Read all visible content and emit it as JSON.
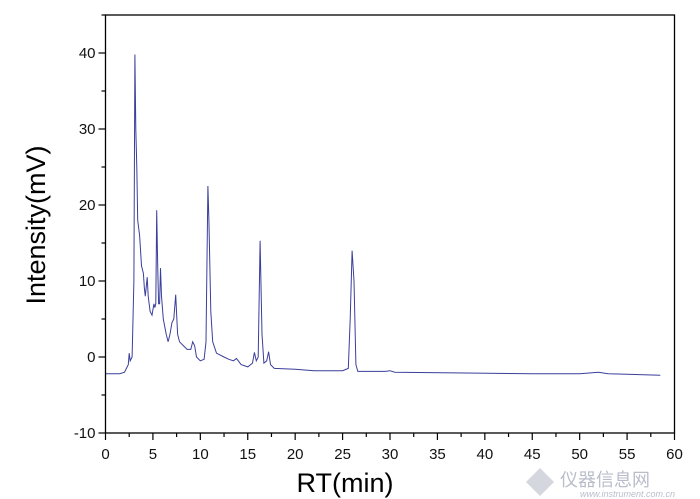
{
  "chart_data": {
    "type": "line",
    "title": "",
    "xlabel": "RT(min)",
    "ylabel": "Intensity(mV)",
    "xlim": [
      0,
      60
    ],
    "ylim": [
      -10,
      45
    ],
    "xticks": [
      0,
      5,
      10,
      15,
      20,
      25,
      30,
      35,
      40,
      45,
      50,
      55,
      60
    ],
    "yticks": [
      -10,
      0,
      10,
      20,
      30,
      40
    ],
    "grid": false,
    "legend": "none",
    "line_color": "#3a3f9a",
    "series": [
      {
        "x": [
          0,
          1.5,
          2.0,
          2.4,
          2.5,
          2.6,
          2.8,
          3.0,
          3.1,
          3.2,
          3.3,
          3.4,
          3.6,
          3.8,
          4.0,
          4.1,
          4.2,
          4.4,
          4.5,
          4.7,
          4.9,
          5.1,
          5.2,
          5.3,
          5.4,
          5.5,
          5.6,
          5.7,
          5.8,
          5.9,
          6.1,
          6.4,
          6.6,
          6.8,
          7.0,
          7.2,
          7.4,
          7.6,
          7.8,
          8.2,
          8.6,
          9.0,
          9.2,
          9.4,
          9.6,
          10.0,
          10.4,
          10.6,
          10.8,
          10.9,
          11.1,
          11.3,
          11.7,
          12.5,
          13.0,
          13.5,
          13.8,
          14.0,
          14.3,
          15.0,
          15.5,
          15.7,
          15.9,
          16.1,
          16.3,
          16.5,
          16.7,
          17.0,
          17.2,
          17.4,
          17.8,
          20,
          22,
          25,
          25.6,
          25.8,
          26.0,
          26.2,
          26.4,
          26.6,
          29.5,
          30,
          30.5,
          38,
          45,
          50,
          52,
          53,
          58.5
        ],
        "y": [
          -2.2,
          -2.2,
          -2.0,
          -1.0,
          0.5,
          -0.5,
          0,
          10,
          39.8,
          30,
          25,
          18,
          16,
          12,
          11,
          9,
          8,
          10.5,
          8,
          6,
          5.5,
          7,
          6.5,
          7,
          19.3,
          12,
          7,
          7,
          11.7,
          8,
          5,
          3,
          2,
          3,
          4.5,
          5,
          8.2,
          3,
          2,
          1.5,
          1,
          1,
          2,
          1.5,
          0,
          -0.5,
          -0.3,
          2,
          22.5,
          18,
          6,
          2,
          0.5,
          0,
          -0.3,
          -0.5,
          -0.2,
          -0.5,
          -1,
          -1.3,
          -0.8,
          0.6,
          -0.5,
          0,
          15.3,
          3,
          -0.8,
          -0.5,
          0.7,
          -1,
          -1.5,
          -1.6,
          -1.8,
          -1.8,
          -1.5,
          5,
          14,
          10,
          -1,
          -1.9,
          -1.9,
          -1.8,
          -2.0,
          -2.1,
          -2.2,
          -2.2,
          -2.0,
          -2.2,
          -2.4
        ]
      }
    ]
  },
  "watermark": {
    "logo_text": "仪器信息网",
    "url_text": "www.instrument.com.cn"
  }
}
